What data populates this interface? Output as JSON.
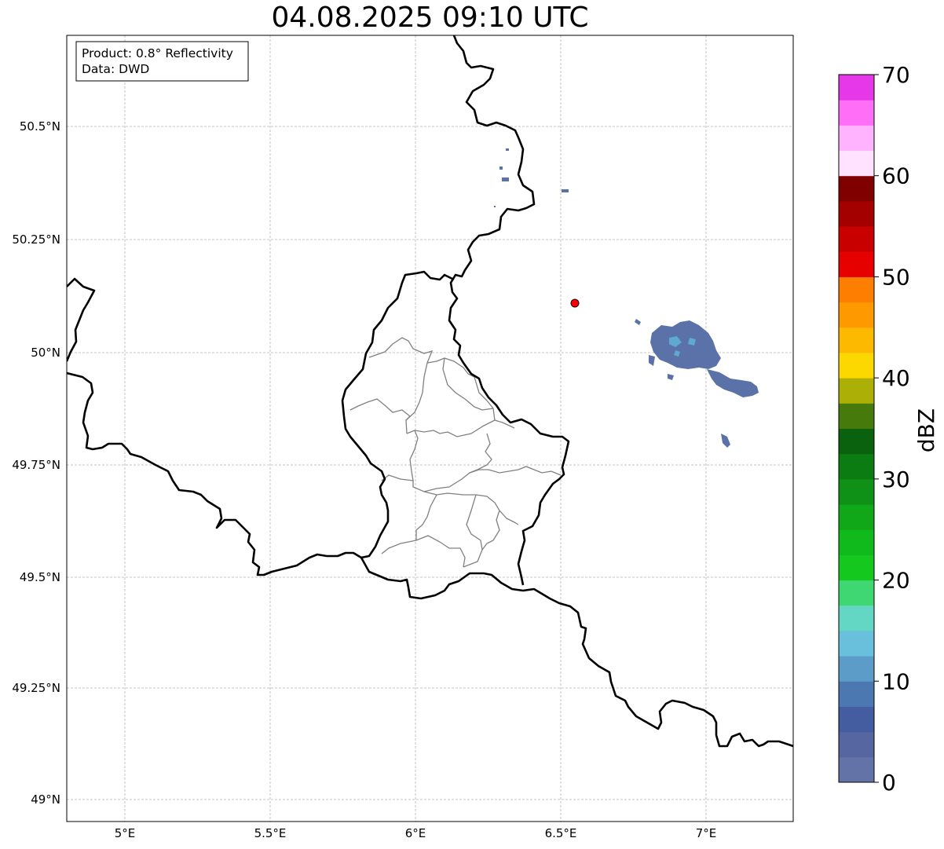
{
  "title": "04.08.2025 09:10 UTC",
  "info": {
    "product": "Product: 0.8° Reflectivity",
    "data": "Data: DWD"
  },
  "lon_ticks": [
    "5°E",
    "5.5°E",
    "6°E",
    "6.5°E",
    "7°E"
  ],
  "lat_ticks": [
    "50.5°N",
    "50.25°N",
    "50°N",
    "49.75°N",
    "49.5°N",
    "49.25°N",
    "49°N"
  ],
  "colorbar": {
    "label": "dBZ",
    "ticks": [
      "0",
      "10",
      "20",
      "30",
      "40",
      "50",
      "60",
      "70"
    ],
    "range": [
      0,
      70
    ],
    "step": 2.5,
    "colors": [
      "#6373a8",
      "#5566a0",
      "#435da0",
      "#4b78b0",
      "#5b9dc8",
      "#68c0dc",
      "#64d6c4",
      "#3ed772",
      "#14c81e",
      "#11ba1c",
      "#10a818",
      "#0e9116",
      "#0b7c12",
      "#0a620f",
      "#467a0b",
      "#acb006",
      "#fcd700",
      "#fdb800",
      "#fe9a00",
      "#fd7e00",
      "#e60000",
      "#c80000",
      "#a50000",
      "#800000",
      "#ffe2ff",
      "#ffb3ff",
      "#ff6ef6",
      "#e637e9"
    ]
  },
  "radar_site": {
    "lon": 6.55,
    "lat": 50.11,
    "color": "#ff0000"
  },
  "map": {
    "extent": {
      "lon_min": 4.8,
      "lon_max": 7.3,
      "lat_min": 48.95,
      "lat_max": 50.7
    },
    "grid": true
  },
  "echo_color": "#5a72a8",
  "echo_highlight_color": "#5fa8d0"
}
